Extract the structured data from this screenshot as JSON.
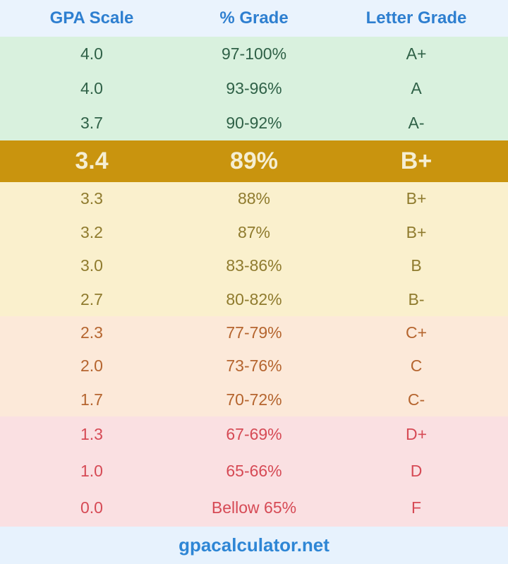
{
  "chart_data": {
    "type": "table",
    "columns": [
      "GPA Scale",
      "% Grade",
      "Letter Grade"
    ],
    "rows": [
      [
        "4.0",
        "97-100%",
        "A+"
      ],
      [
        "4.0",
        "93-96%",
        "A"
      ],
      [
        "3.7",
        "90-92%",
        "A-"
      ],
      [
        "3.4",
        "89%",
        "B+"
      ],
      [
        "3.3",
        "88%",
        "B+"
      ],
      [
        "3.2",
        "87%",
        "B+"
      ],
      [
        "3.0",
        "83-86%",
        "B"
      ],
      [
        "2.7",
        "80-82%",
        "B-"
      ],
      [
        "2.3",
        "77-79%",
        "C+"
      ],
      [
        "2.0",
        "73-76%",
        "C"
      ],
      [
        "1.7",
        "70-72%",
        "C-"
      ],
      [
        "1.3",
        "67-69%",
        "D+"
      ],
      [
        "1.0",
        "65-66%",
        "D"
      ],
      [
        "0.0",
        "Bellow 65%",
        "F"
      ]
    ],
    "highlighted_row_index": 3,
    "highlighted_row": [
      "3.4",
      "89%",
      "B+"
    ],
    "row_groups": [
      {
        "grade_band": "A",
        "row_indexes": [
          0,
          1,
          2
        ]
      },
      {
        "grade_band": "B (highlighted result)",
        "row_indexes": [
          3
        ]
      },
      {
        "grade_band": "B",
        "row_indexes": [
          4,
          5,
          6,
          7
        ]
      },
      {
        "grade_band": "C",
        "row_indexes": [
          8,
          9,
          10
        ]
      },
      {
        "grade_band": "D-F",
        "row_indexes": [
          11,
          12,
          13
        ]
      }
    ],
    "title": "",
    "legend": "none",
    "grid": "off"
  },
  "footer": {
    "site": "gpacalculator.net"
  },
  "colors": {
    "header_bg": "#eaf3fd",
    "header_text": "#2e7fd0",
    "green_bg": "#d9f1de",
    "green_text": "#2f6147",
    "gold_bg": "#c9940e",
    "gold_text": "#f5eed2",
    "yellow_bg": "#faf0cd",
    "yellow_text": "#8f7b2e",
    "peach_bg": "#fce9d9",
    "peach_text": "#b5652f",
    "pink_bg": "#fae0e2",
    "pink_text": "#d64a55",
    "footer_bg": "#e7f2fd",
    "footer_text": "#2e86d5"
  }
}
